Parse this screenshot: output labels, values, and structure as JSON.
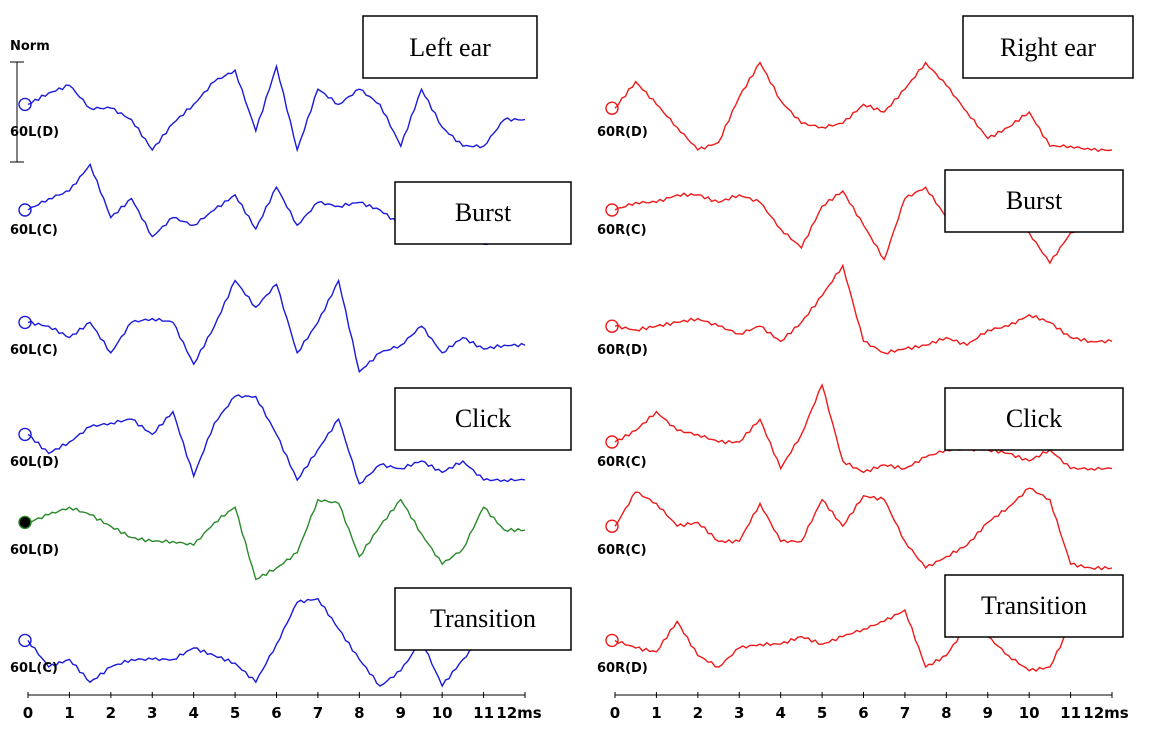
{
  "norm_label": "Norm",
  "colors": {
    "left": "#1a1adb",
    "right": "#ee1a1a",
    "highlight": "#2a8a2a",
    "axis": "#000000"
  },
  "boxes": {
    "left_ear": "Left ear",
    "right_ear": "Right ear",
    "left_burst": "Burst",
    "right_burst": "Burst",
    "left_click": "Click",
    "right_click": "Click",
    "left_transition": "Transition",
    "right_transition": "Transition"
  },
  "chart_data": [
    {
      "type": "line",
      "panel": "left",
      "xlim": [
        0,
        12
      ],
      "x_unit": "ms",
      "x_ticks": [
        "0",
        "1",
        "2",
        "3",
        "4",
        "5",
        "6",
        "7",
        "8",
        "9",
        "10",
        "11",
        "12ms"
      ],
      "series": [
        {
          "name": "60L(D)",
          "color": "#1a1adb",
          "x": [
            0,
            0.5,
            1,
            1.5,
            2,
            2.5,
            3,
            3.5,
            4,
            4.5,
            5,
            5.5,
            6,
            6.5,
            7,
            7.5,
            8,
            8.5,
            9,
            9.5,
            10,
            10.5,
            11,
            11.5,
            12
          ],
          "y": [
            0.2,
            0.5,
            0.7,
            0.1,
            0.1,
            -0.2,
            -1.0,
            -0.3,
            0.2,
            0.8,
            1.1,
            -0.5,
            1.2,
            -1.0,
            0.6,
            0.2,
            0.6,
            0.2,
            -0.9,
            0.6,
            -0.4,
            -0.9,
            -0.9,
            -0.2,
            -0.2
          ]
        },
        {
          "name": "60L(C)",
          "color": "#1a1adb",
          "x": [
            0,
            0.5,
            1,
            1.5,
            2,
            2.5,
            3,
            3.5,
            4,
            4.5,
            5,
            5.5,
            6,
            6.5,
            7,
            7.5,
            8,
            8.5,
            9,
            9.5,
            10,
            10.5,
            11,
            11.5,
            12
          ],
          "y": [
            0.0,
            0.3,
            0.5,
            1.2,
            -0.2,
            0.3,
            -0.7,
            -0.2,
            -0.4,
            0.0,
            0.4,
            -0.5,
            0.6,
            -0.4,
            0.2,
            0.1,
            0.2,
            0.0,
            -0.4,
            0.0,
            0.0,
            -0.4,
            -0.9,
            -0.7,
            -0.7
          ]
        },
        {
          "name": "60L(C)",
          "color": "#1a1adb",
          "x": [
            0,
            0.5,
            1,
            1.5,
            2,
            2.5,
            3,
            3.5,
            4,
            4.5,
            5,
            5.5,
            6,
            6.5,
            7,
            7.5,
            8,
            8.5,
            9,
            9.5,
            10,
            10.5,
            11,
            11.5,
            12
          ],
          "y": [
            0.2,
            0.1,
            -0.2,
            0.2,
            -0.6,
            0.2,
            0.3,
            0.2,
            -0.9,
            0.1,
            1.3,
            0.6,
            1.2,
            -0.6,
            0.2,
            1.3,
            -1.1,
            -0.6,
            -0.4,
            0.1,
            -0.6,
            -0.2,
            -0.5,
            -0.4,
            -0.4
          ]
        },
        {
          "name": "60L(D)",
          "color": "#1a1adb",
          "x": [
            0,
            0.5,
            1,
            1.5,
            2,
            2.5,
            3,
            3.5,
            4,
            4.5,
            5,
            5.5,
            6,
            6.5,
            7,
            7.5,
            8,
            8.5,
            9,
            9.5,
            10,
            10.5,
            11,
            11.5,
            12
          ],
          "y": [
            0.2,
            -0.3,
            0.0,
            0.4,
            0.5,
            0.6,
            0.2,
            0.8,
            -0.9,
            0.5,
            1.2,
            1.2,
            0.2,
            -1.0,
            -0.2,
            0.6,
            -1.1,
            -0.6,
            -0.7,
            -0.5,
            -0.8,
            -0.5,
            -1.0,
            -1.0,
            -1.0
          ]
        },
        {
          "name": "60L(D)",
          "color": "#2a8a2a",
          "x": [
            0,
            0.5,
            1,
            1.5,
            2,
            2.5,
            3,
            3.5,
            4,
            4.5,
            5,
            5.5,
            6,
            6.5,
            7,
            7.5,
            8,
            8.5,
            9,
            9.5,
            10,
            10.5,
            11,
            11.5,
            12
          ],
          "y": [
            0.2,
            0.4,
            0.6,
            0.4,
            0.1,
            -0.2,
            -0.3,
            -0.3,
            -0.4,
            0.2,
            0.6,
            -1.3,
            -1.0,
            -0.6,
            0.8,
            0.7,
            -0.7,
            0.1,
            0.8,
            -0.1,
            -0.9,
            -0.5,
            0.6,
            0.0,
            0.0
          ]
        },
        {
          "name": "60L(C)",
          "color": "#1a1adb",
          "x": [
            0,
            0.5,
            1,
            1.5,
            2,
            2.5,
            3,
            3.5,
            4,
            4.5,
            5,
            5.5,
            6,
            6.5,
            7,
            7.5,
            8,
            8.5,
            9,
            9.5,
            10,
            10.5,
            11,
            11.5,
            12
          ],
          "y": [
            0.2,
            -0.5,
            -0.3,
            -0.9,
            -0.5,
            -0.3,
            -0.3,
            -0.3,
            0.0,
            -0.2,
            -0.4,
            -0.9,
            0.1,
            1.2,
            1.3,
            0.5,
            -0.3,
            -1.0,
            -0.6,
            0.2,
            -1.0,
            -0.3,
            0.3,
            0.3,
            0.3
          ]
        }
      ]
    },
    {
      "type": "line",
      "panel": "right",
      "xlim": [
        0,
        12
      ],
      "x_unit": "ms",
      "x_ticks": [
        "0",
        "1",
        "2",
        "3",
        "4",
        "5",
        "6",
        "7",
        "8",
        "9",
        "10",
        "11",
        "12ms"
      ],
      "series": [
        {
          "name": "60R(D)",
          "color": "#ee1a1a",
          "x": [
            0,
            0.5,
            1,
            1.5,
            2,
            2.5,
            3,
            3.5,
            4,
            4.5,
            5,
            5.5,
            6,
            6.5,
            7,
            7.5,
            8,
            8.5,
            9,
            9.5,
            10,
            10.5,
            11,
            11.5,
            12
          ],
          "y": [
            0.1,
            0.8,
            0.2,
            -0.4,
            -1.0,
            -0.8,
            0.4,
            1.3,
            0.3,
            -0.3,
            -0.4,
            -0.3,
            0.2,
            0.0,
            0.6,
            1.3,
            0.7,
            0.0,
            -0.7,
            -0.4,
            0.0,
            -0.9,
            -0.9,
            -1.0,
            -1.0
          ]
        },
        {
          "name": "60R(C)",
          "color": "#ee1a1a",
          "x": [
            0,
            0.5,
            1,
            1.5,
            2,
            2.5,
            3,
            3.5,
            4,
            4.5,
            5,
            5.5,
            6,
            6.5,
            7,
            7.5,
            8,
            8.5,
            9,
            9.5,
            10,
            10.5,
            11,
            11.5,
            12
          ],
          "y": [
            0.0,
            0.2,
            0.2,
            0.4,
            0.4,
            0.2,
            0.4,
            0.2,
            -0.5,
            -1.0,
            0.1,
            0.5,
            -0.4,
            -1.3,
            0.3,
            0.6,
            -0.2,
            -0.3,
            0.1,
            0.0,
            -0.6,
            -1.4,
            -0.6,
            -0.3,
            -0.3
          ]
        },
        {
          "name": "60R(D)",
          "color": "#ee1a1a",
          "x": [
            0,
            0.5,
            1,
            1.5,
            2,
            2.5,
            3,
            3.5,
            4,
            4.5,
            5,
            5.5,
            6,
            6.5,
            7,
            7.5,
            8,
            8.5,
            9,
            9.5,
            10,
            10.5,
            11,
            11.5,
            12
          ],
          "y": [
            0.1,
            0.0,
            0.1,
            0.2,
            0.3,
            0.1,
            -0.1,
            0.1,
            -0.3,
            0.2,
            0.9,
            1.7,
            -0.3,
            -0.6,
            -0.5,
            -0.4,
            -0.2,
            -0.4,
            0.0,
            0.1,
            0.4,
            0.2,
            -0.2,
            -0.3,
            -0.3
          ]
        },
        {
          "name": "60R(C)",
          "color": "#ee1a1a",
          "x": [
            0,
            0.5,
            1,
            1.5,
            2,
            2.5,
            3,
            3.5,
            4,
            4.5,
            5,
            5.5,
            6,
            6.5,
            7,
            7.5,
            8,
            8.5,
            9,
            9.5,
            10,
            10.5,
            11,
            11.5,
            12
          ],
          "y": [
            0.0,
            0.3,
            0.8,
            0.3,
            0.2,
            0.0,
            0.0,
            0.6,
            -0.7,
            0.2,
            1.5,
            -0.5,
            -0.8,
            -0.6,
            -0.7,
            -0.4,
            -0.2,
            -0.2,
            -0.2,
            -0.3,
            -0.5,
            -0.2,
            -0.7,
            -0.7,
            -0.7
          ]
        },
        {
          "name": "60R(C)",
          "color": "#ee1a1a",
          "x": [
            0,
            0.5,
            1,
            1.5,
            2,
            2.5,
            3,
            3.5,
            4,
            4.5,
            5,
            5.5,
            6,
            6.5,
            7,
            7.5,
            8,
            8.5,
            9,
            9.5,
            10,
            10.5,
            11,
            11.5,
            12
          ],
          "y": [
            0.1,
            1.0,
            0.7,
            0.1,
            0.2,
            -0.3,
            -0.3,
            0.7,
            -0.3,
            -0.3,
            0.8,
            0.1,
            0.9,
            0.8,
            -0.3,
            -1.0,
            -0.7,
            -0.4,
            0.2,
            0.6,
            1.1,
            0.8,
            -0.9,
            -1.0,
            -1.0
          ]
        },
        {
          "name": "60R(D)",
          "color": "#ee1a1a",
          "x": [
            0,
            0.5,
            1,
            1.5,
            2,
            2.5,
            3,
            3.5,
            4,
            4.5,
            5,
            5.5,
            6,
            6.5,
            7,
            7.5,
            8,
            8.5,
            9,
            9.5,
            10,
            10.5,
            11,
            11.5,
            12
          ],
          "y": [
            0.2,
            0.0,
            -0.1,
            0.7,
            -0.2,
            -0.5,
            0.0,
            0.1,
            0.1,
            0.3,
            0.1,
            0.3,
            0.5,
            0.7,
            1.0,
            -0.5,
            -0.2,
            0.6,
            0.3,
            -0.2,
            -0.6,
            -0.5,
            0.6,
            0.6,
            0.6
          ]
        }
      ]
    }
  ]
}
